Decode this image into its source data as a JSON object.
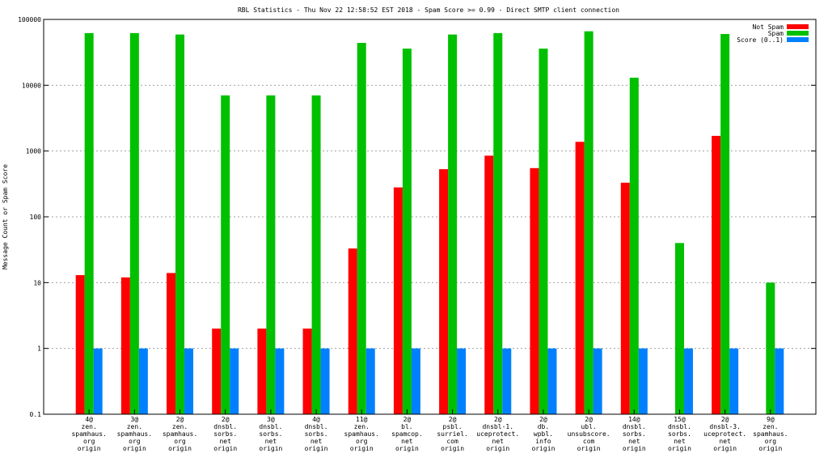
{
  "chart_data": {
    "type": "bar",
    "title": "RBL Statistics - Thu Nov 22 12:58:52 EST 2018 - Spam Score >= 0.99 - Direct SMTP client connection",
    "xlabel": "",
    "ylabel": "Message Count or Spam Score",
    "yscale": "log",
    "ylim": [
      0.1,
      100000
    ],
    "y_ticks": [
      "0.1",
      "1",
      "10",
      "100",
      "1000",
      "10000",
      "100000"
    ],
    "grid": true,
    "legend_position": "top-right",
    "categories": [
      [
        "4@",
        "zen.",
        "spamhaus.",
        "org",
        "origin"
      ],
      [
        "3@",
        "zen.",
        "spamhaus.",
        "org",
        "origin"
      ],
      [
        "2@",
        "zen.",
        "spamhaus.",
        "org",
        "origin"
      ],
      [
        "2@",
        "dnsbl.",
        "sorbs.",
        "net",
        "origin"
      ],
      [
        "3@",
        "dnsbl.",
        "sorbs.",
        "net",
        "origin"
      ],
      [
        "4@",
        "dnsbl.",
        "sorbs.",
        "net",
        "origin"
      ],
      [
        "11@",
        "zen.",
        "spamhaus.",
        "org",
        "origin"
      ],
      [
        "2@",
        "bl.",
        "spamcop.",
        "net",
        "origin"
      ],
      [
        "2@",
        "psbl.",
        "surriel.",
        "com",
        "origin"
      ],
      [
        "2@",
        "dnsbl-1.",
        "uceprotect.",
        "net",
        "origin"
      ],
      [
        "2@",
        "db.",
        "wpbl.",
        "info",
        "origin"
      ],
      [
        "2@",
        "ubl.",
        "unsubscore.",
        "com",
        "origin"
      ],
      [
        "14@",
        "dnsbl.",
        "sorbs.",
        "net",
        "origin"
      ],
      [
        "15@",
        "dnsbl.",
        "sorbs.",
        "net",
        "origin"
      ],
      [
        "2@",
        "dnsbl-3.",
        "uceprotect.",
        "net",
        "origin"
      ],
      [
        "9@",
        "zen.",
        "spamhaus.",
        "org",
        "origin"
      ]
    ],
    "series": [
      {
        "name": "Not Spam",
        "color": "#ff0000",
        "values": [
          13,
          12,
          14,
          2,
          2,
          2,
          33,
          280,
          530,
          850,
          550,
          1380,
          330,
          null,
          1700,
          null
        ]
      },
      {
        "name": "Spam",
        "color": "#00c000",
        "values": [
          62000,
          62000,
          59000,
          7000,
          7000,
          7000,
          44000,
          36000,
          59000,
          62000,
          36000,
          66000,
          13000,
          40,
          60000,
          10
        ]
      },
      {
        "name": "Score (0..1)",
        "color": "#0080ff",
        "values": [
          1,
          1,
          1,
          1,
          1,
          1,
          1,
          1,
          1,
          1,
          1,
          1,
          1,
          1,
          1,
          1
        ]
      }
    ]
  }
}
